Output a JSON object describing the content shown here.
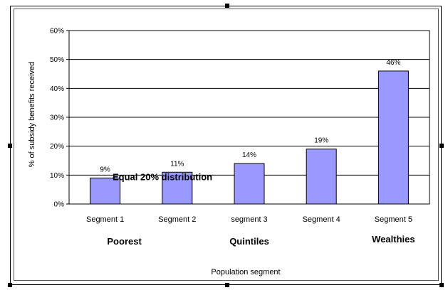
{
  "chart_data": {
    "type": "bar",
    "categories": [
      "Segment 1",
      "Segment 2",
      "segment 3",
      "Segment 4",
      "Segment 5"
    ],
    "values": [
      9,
      11,
      14,
      19,
      46
    ],
    "data_labels": [
      "9%",
      "11%",
      "14%",
      "19%",
      "46%"
    ],
    "xlabel": "Population segment",
    "ylabel": "% of subsidy benefits received",
    "ylim": [
      0,
      60
    ],
    "yticks": [
      "0%",
      "10%",
      "20%",
      "30%",
      "40%",
      "50%",
      "60%"
    ],
    "grid": true,
    "group_labels": [
      "Poorest",
      "Quintiles",
      "Wealthies"
    ],
    "annotation": {
      "text": "Equal 20% distribution",
      "value": 20
    },
    "bar_color": "#9999ff"
  }
}
